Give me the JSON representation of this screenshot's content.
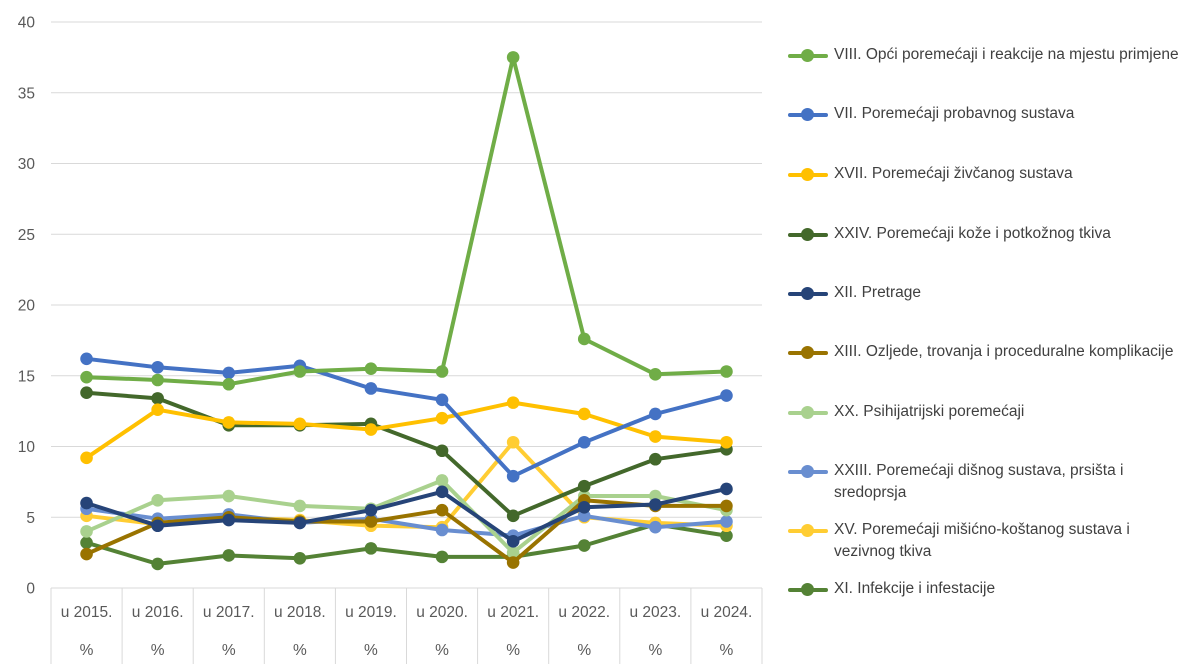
{
  "chart_data": {
    "type": "line",
    "categories": [
      "u 2015.",
      "u 2016.",
      "u 2017.",
      "u 2018.",
      "u 2019.",
      "u 2020.",
      "u 2021.",
      "u 2022.",
      "u 2023.",
      "u 2024."
    ],
    "category_sub_label": "%",
    "ylim": [
      0,
      40
    ],
    "yticks": [
      "0",
      "5",
      "10",
      "15",
      "20",
      "25",
      "30",
      "35",
      "40"
    ],
    "grid": true,
    "legend_position": "right",
    "series": [
      {
        "name": "VIII. Opći poremećaji i reakcije na mjestu primjene",
        "color": "#70AD47",
        "values": [
          14.9,
          14.7,
          14.4,
          15.3,
          15.5,
          15.3,
          37.5,
          17.6,
          15.1,
          15.3
        ]
      },
      {
        "name": "VII. Poremećaji probavnog sustava",
        "color": "#4472C4",
        "values": [
          16.2,
          15.6,
          15.2,
          15.7,
          14.1,
          13.3,
          7.9,
          10.3,
          12.3,
          13.6
        ]
      },
      {
        "name": "XVII. Poremećaji živčanog sustava",
        "color": "#FFC000",
        "values": [
          9.2,
          12.6,
          11.7,
          11.6,
          11.2,
          12.0,
          13.1,
          12.3,
          10.7,
          10.3
        ]
      },
      {
        "name": "XXIV. Poremećaji kože i potkožnog tkiva",
        "color": "#43682B",
        "values": [
          13.8,
          13.4,
          11.5,
          11.5,
          11.6,
          9.7,
          5.1,
          7.2,
          9.1,
          9.8
        ]
      },
      {
        "name": "XII. Pretrage",
        "color": "#264478",
        "values": [
          6.0,
          4.4,
          4.8,
          4.6,
          5.5,
          6.8,
          3.3,
          5.7,
          5.9,
          7.0
        ]
      },
      {
        "name": "XIII. Ozljede, trovanja i proceduralne komplikacije",
        "color": "#997300",
        "values": [
          2.4,
          4.6,
          5.0,
          4.7,
          4.7,
          5.5,
          1.8,
          6.2,
          5.8,
          5.8
        ]
      },
      {
        "name": "XX. Psihijatrijski poremećaji",
        "color": "#A9D18E",
        "values": [
          4.0,
          6.2,
          6.5,
          5.8,
          5.6,
          7.6,
          2.5,
          6.5,
          6.5,
          5.5
        ]
      },
      {
        "name": "XXIII. Poremećaji dišnog sustava, prsišta i sredoprsja",
        "color": "#698ED0",
        "values": [
          5.6,
          4.9,
          5.2,
          4.6,
          4.9,
          4.1,
          3.7,
          5.1,
          4.3,
          4.7
        ]
      },
      {
        "name": "XV. Poremećaji mišićno-koštanog sustava i vezivnog tkiva",
        "color": "#FFCD33",
        "values": [
          5.1,
          4.5,
          5.0,
          4.8,
          4.4,
          4.3,
          10.3,
          5.0,
          4.6,
          4.4
        ]
      },
      {
        "name": "XI. Infekcije i infestacije",
        "color": "#548235",
        "values": [
          3.2,
          1.7,
          2.3,
          2.1,
          2.8,
          2.2,
          2.2,
          3.0,
          4.5,
          3.7
        ]
      }
    ]
  }
}
